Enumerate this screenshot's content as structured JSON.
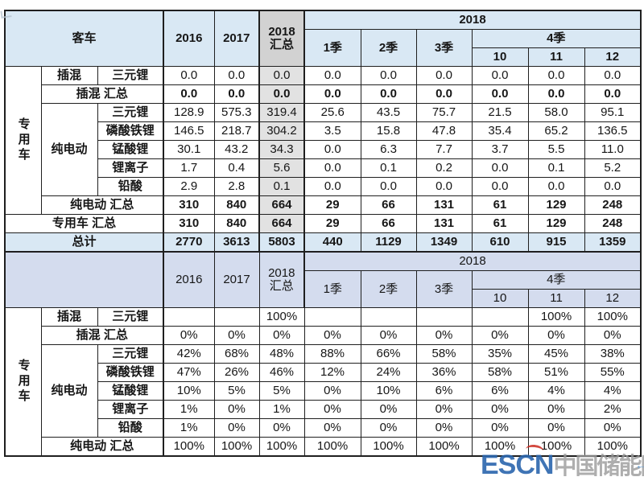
{
  "columns": {
    "years": [
      "2016",
      "2017"
    ],
    "total2018": "2018 汇总",
    "year2018": "2018",
    "quarters": [
      "1季",
      "2季",
      "3季"
    ],
    "quarter4": "4季",
    "months": [
      "10",
      "11",
      "12"
    ]
  },
  "labels": {
    "table1_corner": "客车",
    "table2_corner": "",
    "vehicle_class": "专用车",
    "phev": "插混",
    "phev_total": "插混 汇总",
    "bev": "纯电动",
    "bev_total": "纯电动 汇总",
    "vehicle_class_total": "专用车 汇总",
    "grand_total": "总计",
    "batteries": [
      "三元锂",
      "磷酸铁锂",
      "锰酸锂",
      "锂离子",
      "铅酸"
    ]
  },
  "volume_section": {
    "phev_row": [
      "0.0",
      "0.0",
      "0.0",
      "0.0",
      "0.0",
      "0.0",
      "0.0",
      "0.0",
      "0.0"
    ],
    "phev_total_row": [
      "0.0",
      "0.0",
      "0.0",
      "0.0",
      "0.0",
      "0.0",
      "0.0",
      "0.0",
      "0.0"
    ],
    "bev_rows": [
      [
        "128.9",
        "575.3",
        "319.4",
        "25.6",
        "43.5",
        "75.7",
        "21.5",
        "58.0",
        "95.1"
      ],
      [
        "146.5",
        "218.7",
        "304.2",
        "3.5",
        "15.8",
        "47.8",
        "35.4",
        "65.2",
        "136.5"
      ],
      [
        "30.1",
        "43.2",
        "34.3",
        "0.0",
        "6.3",
        "7.7",
        "3.7",
        "5.5",
        "11.0"
      ],
      [
        "1.7",
        "0.4",
        "5.6",
        "0.0",
        "0.1",
        "0.2",
        "0.0",
        "0.1",
        "5.2"
      ],
      [
        "2.9",
        "2.8",
        "0.1",
        "0.0",
        "0.0",
        "0.0",
        "0.0",
        "0.0",
        "0.0"
      ]
    ],
    "bev_total_row": [
      "310",
      "840",
      "664",
      "29",
      "66",
      "131",
      "61",
      "129",
      "248"
    ],
    "vehicle_class_total_row": [
      "310",
      "840",
      "664",
      "29",
      "66",
      "131",
      "61",
      "129",
      "248"
    ],
    "grand_total_row": [
      "2770",
      "3613",
      "5803",
      "440",
      "1129",
      "1349",
      "610",
      "915",
      "1359"
    ]
  },
  "share_section": {
    "phev_row": [
      "",
      "",
      "100%",
      "",
      "",
      "",
      "",
      "100%",
      "100%"
    ],
    "phev_total_row": [
      "0%",
      "0%",
      "0%",
      "0%",
      "0%",
      "0%",
      "0%",
      "0%",
      "0%"
    ],
    "bev_rows": [
      [
        "42%",
        "68%",
        "48%",
        "88%",
        "66%",
        "58%",
        "35%",
        "45%",
        "38%"
      ],
      [
        "47%",
        "26%",
        "46%",
        "12%",
        "24%",
        "36%",
        "58%",
        "51%",
        "55%"
      ],
      [
        "10%",
        "5%",
        "5%",
        "0%",
        "10%",
        "6%",
        "6%",
        "4%",
        "4%"
      ],
      [
        "1%",
        "0%",
        "1%",
        "0%",
        "0%",
        "0%",
        "0%",
        "0%",
        "2%"
      ],
      [
        "1%",
        "0%",
        "0%",
        "0%",
        "0%",
        "0%",
        "0%",
        "0%",
        "0%"
      ]
    ],
    "bev_total_row": [
      "100%",
      "100%",
      "100%",
      "100%",
      "100%",
      "100%",
      "100%",
      "100%",
      "100%"
    ]
  },
  "watermark": {
    "logo": "ESCN",
    "site": "中国储能网"
  },
  "page": {
    "return_arrow": "←"
  },
  "colors": {
    "header_blue": "#d9e8f4",
    "header_gray": "#d2d2d2",
    "col_gray": "#e2e2e2",
    "header_lavender": "#d4dcee",
    "total_blue": "#d9e8f4",
    "watermark_blue": "#2b66ad",
    "watermark_gray": "#9b9b9b"
  }
}
